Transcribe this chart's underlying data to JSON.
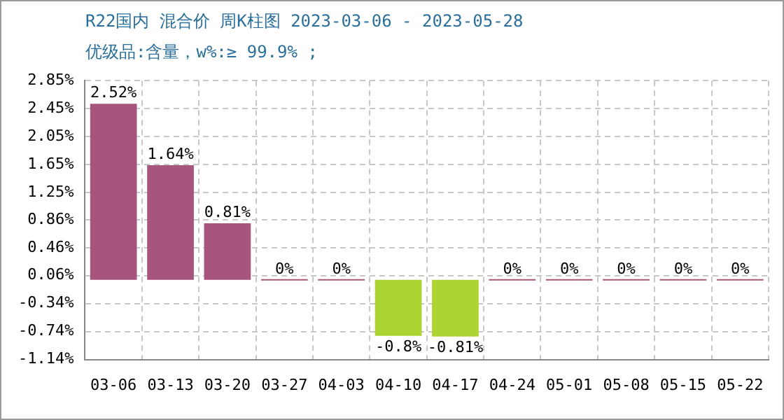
{
  "chart_data": {
    "type": "bar",
    "title": "R22国内 混合价 周K柱图 2023-03-06 - 2023-05-28",
    "subtitle": "优级品:含量，w%:≥ 99.9% ;",
    "categories": [
      "03-06",
      "03-13",
      "03-20",
      "03-27",
      "04-03",
      "04-10",
      "04-17",
      "04-24",
      "05-01",
      "05-08",
      "05-15",
      "05-22"
    ],
    "values": [
      2.52,
      1.64,
      0.81,
      0,
      0,
      -0.8,
      -0.81,
      0,
      0,
      0,
      0,
      0
    ],
    "value_labels": [
      "2.52%",
      "1.64%",
      "0.81%",
      "0%",
      "0%",
      "-0.8%",
      "-0.81%",
      "0%",
      "0%",
      "0%",
      "0%",
      "0%"
    ],
    "colors": [
      "#a8557e",
      "#a8557e",
      "#a8557e",
      "#a8557e",
      "#a8557e",
      "#acd432",
      "#acd432",
      "#a8557e",
      "#a8557e",
      "#a8557e",
      "#a8557e",
      "#a8557e"
    ],
    "ylim": [
      -1.14,
      2.85
    ],
    "yticks": [
      {
        "value": -1.14,
        "label": "-1.14%"
      },
      {
        "value": -0.74,
        "label": "-0.74%"
      },
      {
        "value": -0.34,
        "label": "-0.34%"
      },
      {
        "value": 0.06,
        "label": "0.06%"
      },
      {
        "value": 0.46,
        "label": "0.46%"
      },
      {
        "value": 0.86,
        "label": "0.86%"
      },
      {
        "value": 1.25,
        "label": "1.25%"
      },
      {
        "value": 1.65,
        "label": "1.65%"
      },
      {
        "value": 2.05,
        "label": "2.05%"
      },
      {
        "value": 2.45,
        "label": "2.45%"
      },
      {
        "value": 2.85,
        "label": "2.85%"
      }
    ],
    "grid": true,
    "legend": false
  }
}
